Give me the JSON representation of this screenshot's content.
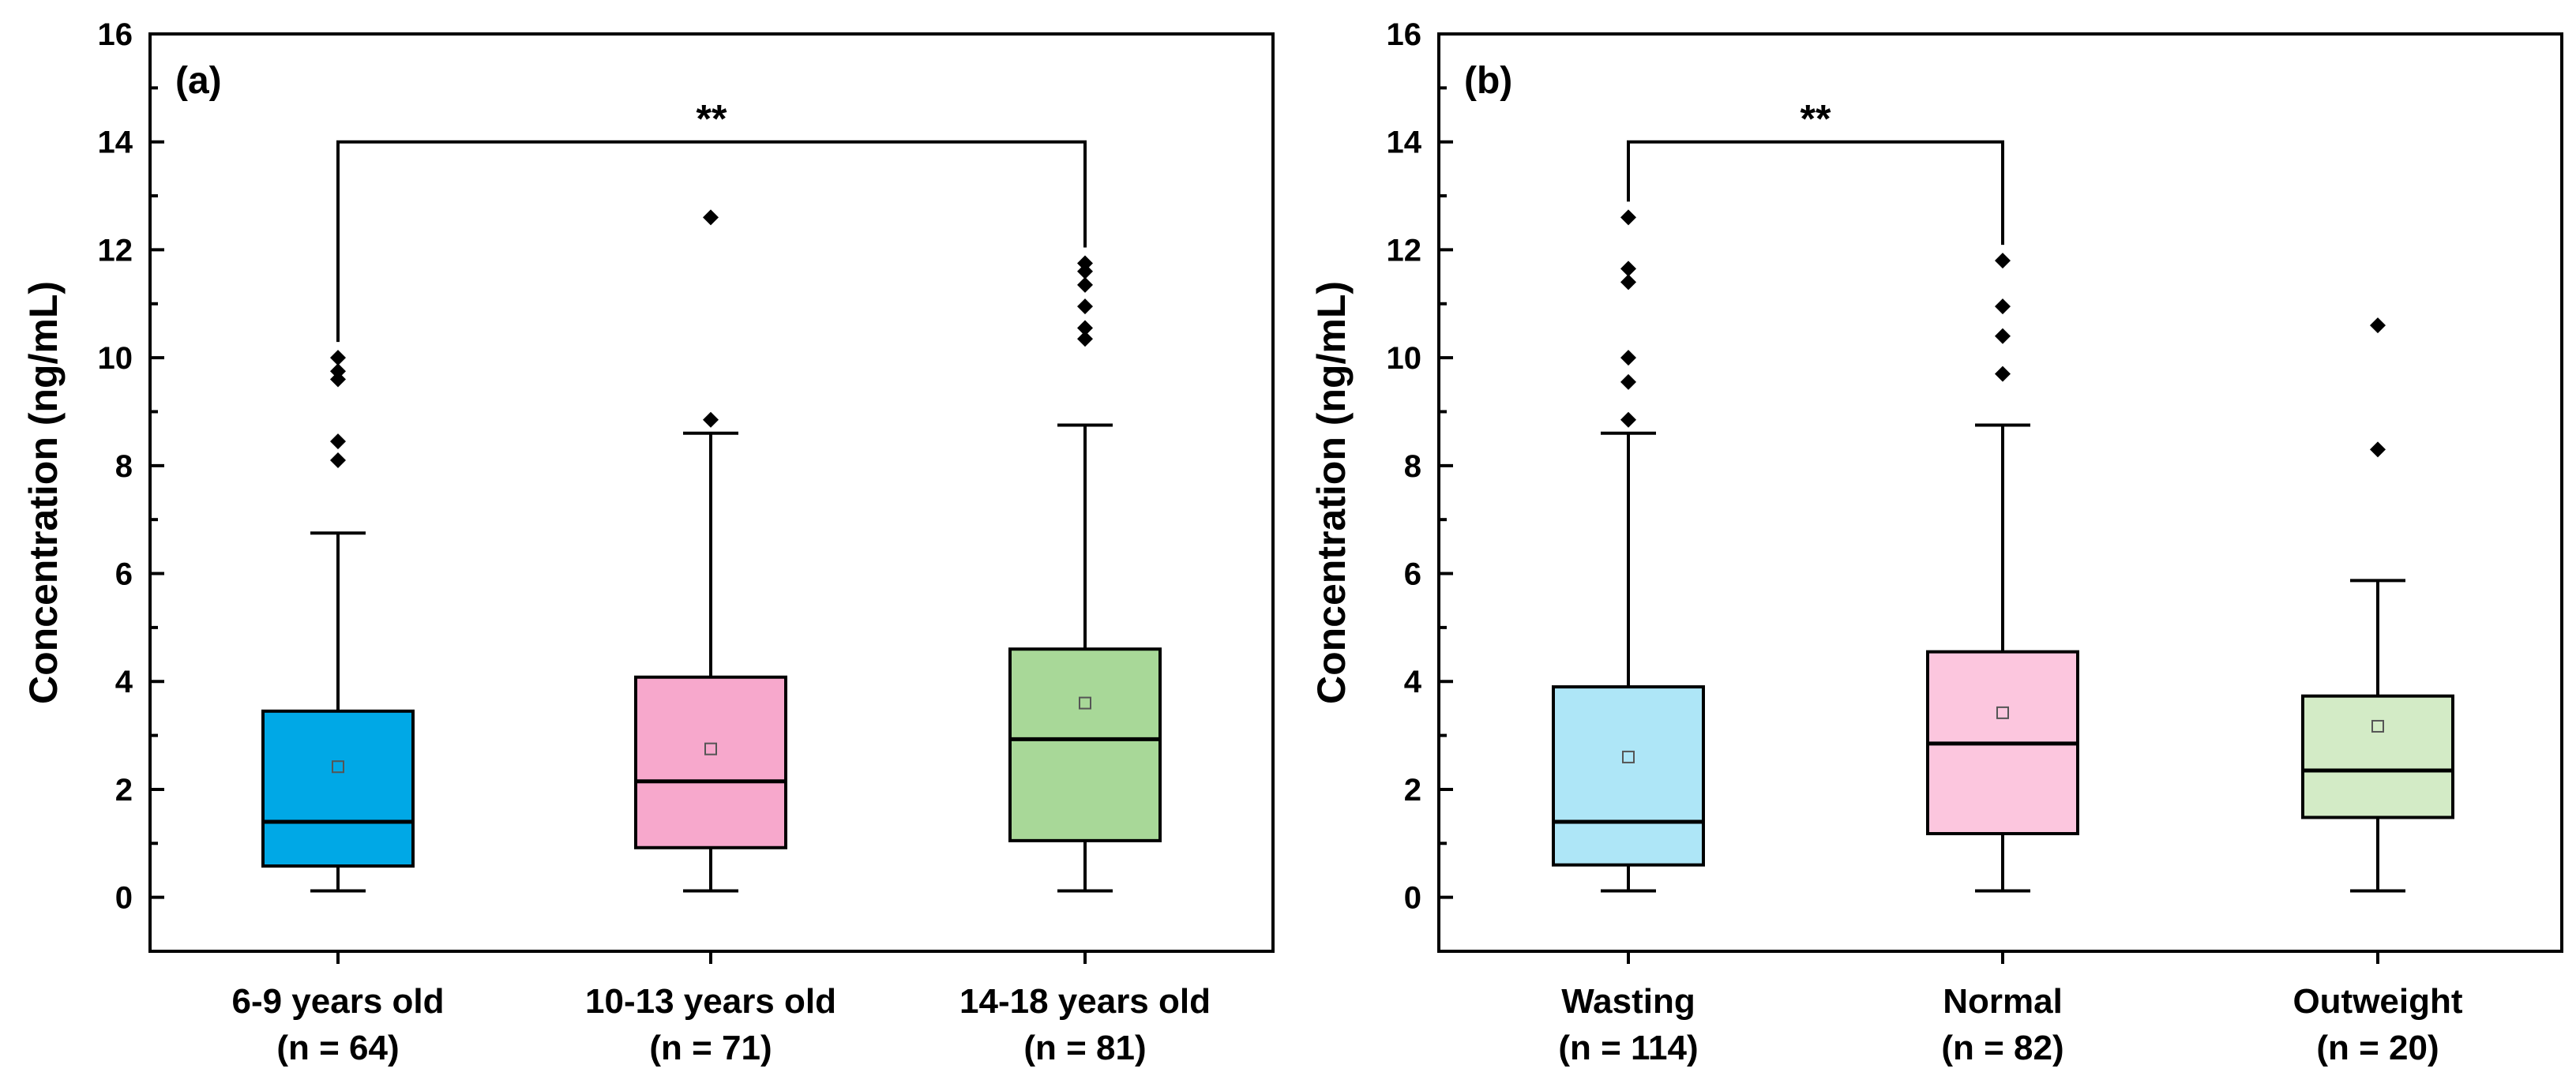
{
  "chart_data": [
    {
      "type": "box",
      "panel_label": "(a)",
      "ylabel": "Concentration (ng/mL)",
      "ylim": [
        -1,
        16
      ],
      "yticks": [
        0,
        2,
        4,
        6,
        8,
        10,
        12,
        14,
        16
      ],
      "grid": false,
      "categories": [
        {
          "line1": "6-9 years old",
          "line2": "(n = 64)"
        },
        {
          "line1": "10-13 years old",
          "line2": "(n = 71)"
        },
        {
          "line1": "14-18 years old",
          "line2": "(n = 81)"
        }
      ],
      "boxes": [
        {
          "min": 0.12,
          "q1": 0.58,
          "median": 1.4,
          "q3": 3.45,
          "max": 6.75,
          "mean": 2.42,
          "outliers": [
            8.1,
            8.45,
            9.6,
            9.75,
            10.0
          ],
          "color": "#00a8e6"
        },
        {
          "min": 0.12,
          "q1": 0.92,
          "median": 2.15,
          "q3": 4.08,
          "max": 8.6,
          "mean": 2.75,
          "outliers": [
            8.85,
            12.6
          ],
          "color": "#f7a8cc"
        },
        {
          "min": 0.12,
          "q1": 1.05,
          "median": 2.93,
          "q3": 4.6,
          "max": 8.75,
          "mean": 3.6,
          "outliers": [
            10.35,
            10.55,
            10.95,
            11.35,
            11.6,
            11.75
          ],
          "color": "#a8d898"
        }
      ],
      "significance": {
        "from": 0,
        "to": 2,
        "y": 14.0,
        "label": "**"
      }
    },
    {
      "type": "box",
      "panel_label": "(b)",
      "ylabel": "Concentration (ng/mL)",
      "ylim": [
        -1,
        16
      ],
      "yticks": [
        0,
        2,
        4,
        6,
        8,
        10,
        12,
        14,
        16
      ],
      "grid": false,
      "categories": [
        {
          "line1": "Wasting",
          "line2": "(n = 114)"
        },
        {
          "line1": "Normal",
          "line2": "(n = 82)"
        },
        {
          "line1": "Outweight",
          "line2": "(n = 20)"
        }
      ],
      "boxes": [
        {
          "min": 0.12,
          "q1": 0.6,
          "median": 1.4,
          "q3": 3.9,
          "max": 8.6,
          "mean": 2.6,
          "outliers": [
            8.85,
            9.55,
            10.0,
            11.4,
            11.65,
            12.6
          ],
          "color": "#aee6f7"
        },
        {
          "min": 0.12,
          "q1": 1.18,
          "median": 2.85,
          "q3": 4.55,
          "max": 8.75,
          "mean": 3.42,
          "outliers": [
            9.7,
            10.4,
            10.95,
            11.8
          ],
          "color": "#fcc6de"
        },
        {
          "min": 0.12,
          "q1": 1.48,
          "median": 2.35,
          "q3": 3.73,
          "max": 5.87,
          "mean": 3.17,
          "outliers": [
            8.3,
            10.6
          ],
          "color": "#d3ebc6"
        }
      ],
      "significance": {
        "from": 0,
        "to": 1,
        "y": 14.0,
        "label": "**"
      }
    }
  ]
}
